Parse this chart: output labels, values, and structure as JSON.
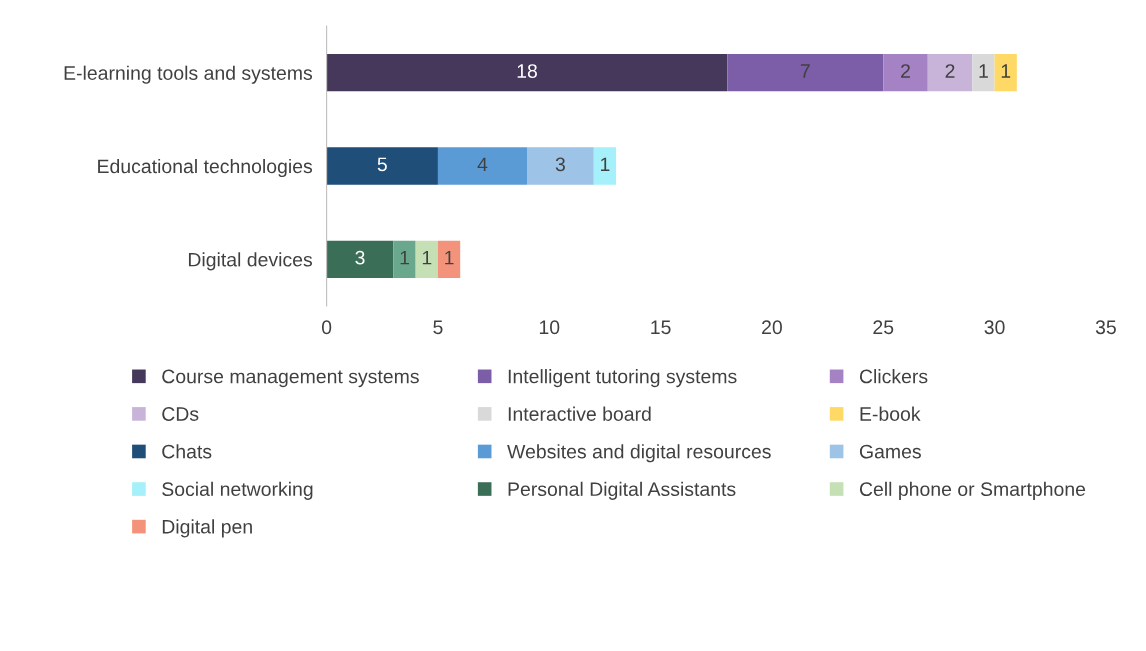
{
  "chart_data": {
    "type": "bar",
    "orientation": "horizontal",
    "stacked": true,
    "data_labels": true,
    "legend": "bottom",
    "grid": false,
    "categories": [
      "E-learning tools and systems",
      "Educational technologies",
      "Digital devices"
    ],
    "xlim": [
      0,
      35
    ],
    "xticks": [
      0,
      5,
      10,
      15,
      20,
      25,
      30,
      35
    ],
    "series": [
      {
        "name": "Course management systems",
        "color": "#45385a",
        "values": [
          18,
          null,
          null
        ]
      },
      {
        "name": "Intelligent tutoring systems",
        "color": "#7b5ea7",
        "values": [
          7,
          null,
          null
        ]
      },
      {
        "name": "Clickers",
        "color": "#a582c4",
        "values": [
          2,
          null,
          null
        ]
      },
      {
        "name": "CDs",
        "color": "#c8b4d9",
        "values": [
          2,
          null,
          null
        ]
      },
      {
        "name": "Interactive board",
        "color": "#d9d9d9",
        "values": [
          1,
          null,
          null
        ]
      },
      {
        "name": "E-book",
        "color": "#ffd966",
        "values": [
          1,
          null,
          null
        ]
      },
      {
        "name": "Chats",
        "color": "#1f4e79",
        "values": [
          null,
          5,
          null
        ]
      },
      {
        "name": "Websites and digital resources",
        "color": "#5b9bd5",
        "values": [
          null,
          4,
          null
        ]
      },
      {
        "name": "Games",
        "color": "#9dc3e6",
        "values": [
          null,
          3,
          null
        ]
      },
      {
        "name": "Social networking",
        "color": "#a5f0fa",
        "values": [
          null,
          1,
          null
        ]
      },
      {
        "name": "Personal Digital Assistants",
        "color": "#3b6e57",
        "values": [
          null,
          null,
          3
        ]
      },
      {
        "color": "#69a88c",
        "values": [
          null,
          null,
          1
        ]
      },
      {
        "name": "Cell phone or Smartphone",
        "color": "#c5e0b4",
        "values": [
          null,
          null,
          1
        ]
      },
      {
        "name": "Digital pen",
        "color": "#f4937b",
        "values": [
          null,
          null,
          1
        ]
      }
    ]
  }
}
